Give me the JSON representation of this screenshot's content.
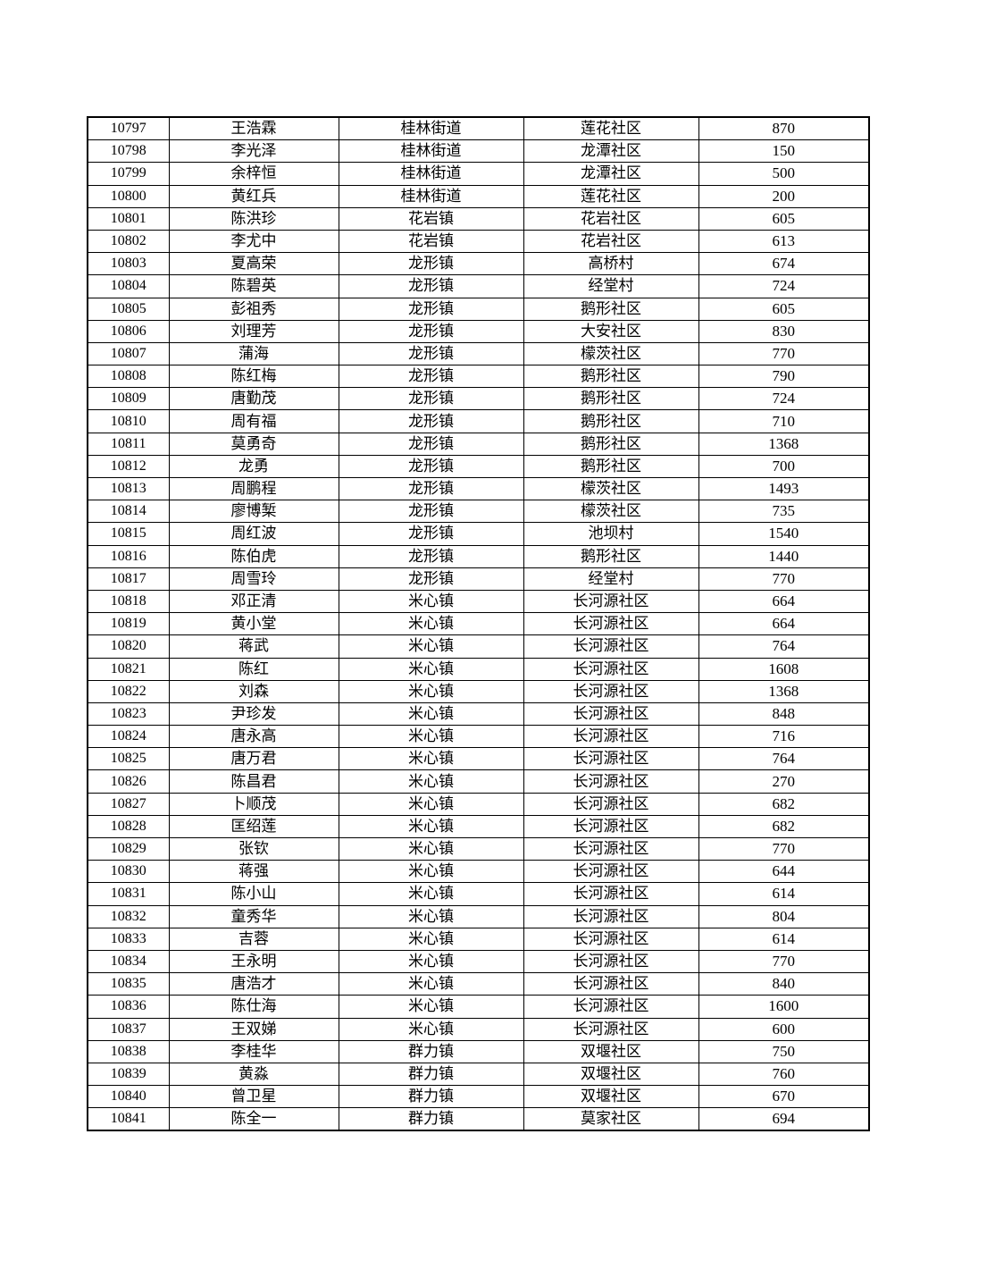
{
  "table": {
    "rows": [
      [
        "10797",
        "王浩霖",
        "桂林街道",
        "莲花社区",
        "870"
      ],
      [
        "10798",
        "李光泽",
        "桂林街道",
        "龙潭社区",
        "150"
      ],
      [
        "10799",
        "余梓恒",
        "桂林街道",
        "龙潭社区",
        "500"
      ],
      [
        "10800",
        "黄红兵",
        "桂林街道",
        "莲花社区",
        "200"
      ],
      [
        "10801",
        "陈洪珍",
        "花岩镇",
        "花岩社区",
        "605"
      ],
      [
        "10802",
        "李尤中",
        "花岩镇",
        "花岩社区",
        "613"
      ],
      [
        "10803",
        "夏高荣",
        "龙形镇",
        "高桥村",
        "674"
      ],
      [
        "10804",
        "陈碧英",
        "龙形镇",
        "经堂村",
        "724"
      ],
      [
        "10805",
        "彭祖秀",
        "龙形镇",
        "鹅形社区",
        "605"
      ],
      [
        "10806",
        "刘理芳",
        "龙形镇",
        "大安社区",
        "830"
      ],
      [
        "10807",
        "蒲海",
        "龙形镇",
        "檬茨社区",
        "770"
      ],
      [
        "10808",
        "陈红梅",
        "龙形镇",
        "鹅形社区",
        "790"
      ],
      [
        "10809",
        "唐勤茂",
        "龙形镇",
        "鹅形社区",
        "724"
      ],
      [
        "10810",
        "周有福",
        "龙形镇",
        "鹅形社区",
        "710"
      ],
      [
        "10811",
        "莫勇奇",
        "龙形镇",
        "鹅形社区",
        "1368"
      ],
      [
        "10812",
        "龙勇",
        "龙形镇",
        "鹅形社区",
        "700"
      ],
      [
        "10813",
        "周鹏程",
        "龙形镇",
        "檬茨社区",
        "1493"
      ],
      [
        "10814",
        "廖博椠",
        "龙形镇",
        "檬茨社区",
        "735"
      ],
      [
        "10815",
        "周红波",
        "龙形镇",
        "池坝村",
        "1540"
      ],
      [
        "10816",
        "陈伯虎",
        "龙形镇",
        "鹅形社区",
        "1440"
      ],
      [
        "10817",
        "周雪玲",
        "龙形镇",
        "经堂村",
        "770"
      ],
      [
        "10818",
        "邓正清",
        "米心镇",
        "长河源社区",
        "664"
      ],
      [
        "10819",
        "黄小堂",
        "米心镇",
        "长河源社区",
        "664"
      ],
      [
        "10820",
        "蒋武",
        "米心镇",
        "长河源社区",
        "764"
      ],
      [
        "10821",
        "陈红",
        "米心镇",
        "长河源社区",
        "1608"
      ],
      [
        "10822",
        "刘森",
        "米心镇",
        "长河源社区",
        "1368"
      ],
      [
        "10823",
        "尹珍发",
        "米心镇",
        "长河源社区",
        "848"
      ],
      [
        "10824",
        "唐永高",
        "米心镇",
        "长河源社区",
        "716"
      ],
      [
        "10825",
        "唐万君",
        "米心镇",
        "长河源社区",
        "764"
      ],
      [
        "10826",
        "陈昌君",
        "米心镇",
        "长河源社区",
        "270"
      ],
      [
        "10827",
        "卜顺茂",
        "米心镇",
        "长河源社区",
        "682"
      ],
      [
        "10828",
        "匡绍莲",
        "米心镇",
        "长河源社区",
        "682"
      ],
      [
        "10829",
        "张钦",
        "米心镇",
        "长河源社区",
        "770"
      ],
      [
        "10830",
        "蒋强",
        "米心镇",
        "长河源社区",
        "644"
      ],
      [
        "10831",
        "陈小山",
        "米心镇",
        "长河源社区",
        "614"
      ],
      [
        "10832",
        "童秀华",
        "米心镇",
        "长河源社区",
        "804"
      ],
      [
        "10833",
        "吉蓉",
        "米心镇",
        "长河源社区",
        "614"
      ],
      [
        "10834",
        "王永明",
        "米心镇",
        "长河源社区",
        "770"
      ],
      [
        "10835",
        "唐浩才",
        "米心镇",
        "长河源社区",
        "840"
      ],
      [
        "10836",
        "陈仕海",
        "米心镇",
        "长河源社区",
        "1600"
      ],
      [
        "10837",
        "王双娣",
        "米心镇",
        "长河源社区",
        "600"
      ],
      [
        "10838",
        "李桂华",
        "群力镇",
        "双堰社区",
        "750"
      ],
      [
        "10839",
        "黄淼",
        "群力镇",
        "双堰社区",
        "760"
      ],
      [
        "10840",
        "曾卫星",
        "群力镇",
        "双堰社区",
        "670"
      ],
      [
        "10841",
        "陈全一",
        "群力镇",
        "莫家社区",
        "694"
      ]
    ]
  }
}
